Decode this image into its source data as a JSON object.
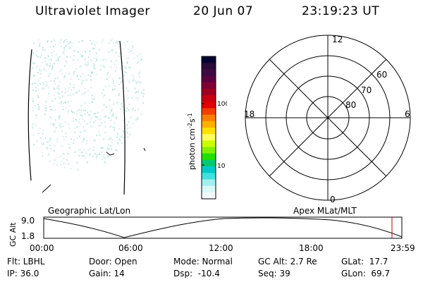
{
  "header": {
    "instrument": "Ultraviolet Imager",
    "date": "20 Jun 07",
    "time": "23:19:23 UT"
  },
  "colorbar": {
    "label": "photon cm",
    "label_sup1": "-2",
    "label_mid": "s",
    "label_sup2": "-1",
    "ticks": [
      "100",
      "10"
    ],
    "colors": [
      "#000033",
      "#2a0a3a",
      "#3b0a44",
      "#5a0040",
      "#800033",
      "#a00020",
      "#c80010",
      "#e00000",
      "#f04000",
      "#f88000",
      "#ffb000",
      "#ffe000",
      "#ffff60",
      "#c8ff00",
      "#80f000",
      "#20e000",
      "#00c870",
      "#00c8c8",
      "#40e0e0",
      "#a0f0f0",
      "#d8f8f8",
      "#f2fafa"
    ]
  },
  "polar": {
    "labels": {
      "top": "12",
      "bottom": "0",
      "left": "18",
      "right": "6"
    },
    "lat_labels": [
      "60",
      "70",
      "80"
    ]
  },
  "timeline": {
    "left_label": "Geographic Lat/Lon",
    "right_label": "Apex MLat/MLT",
    "axis_title": "GC Alt",
    "y_ticks": [
      "9.0",
      "1.8"
    ],
    "x_ticks": [
      "00:00",
      "06:00",
      "12:00",
      "18:00",
      "23:59"
    ]
  },
  "info": {
    "filter": "Flt: LBHL",
    "ip": "IP: 36.0",
    "door": "Door: Open",
    "gain": "Gain: 14",
    "mode": "Mode: Normal",
    "dsp": "Dsp:  -10.4",
    "gc_alt": "GC Alt: 2.7 Re",
    "seq": "Seq: 39",
    "glat": "GLat:  17.7",
    "glon": "GLon:  69.7"
  }
}
